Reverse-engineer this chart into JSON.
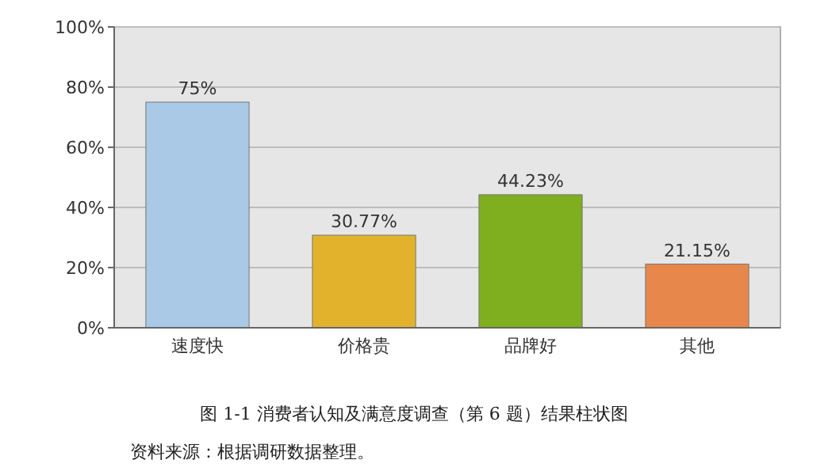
{
  "chart_data": {
    "type": "bar",
    "title": "图 1-1  消费者认知及满意度调查（第 6 题）结果柱状图",
    "categories": [
      "速度快",
      "价格贵",
      "品牌好",
      "其他"
    ],
    "values": [
      75,
      30.77,
      44.23,
      21.15
    ],
    "colors": [
      "#a9c9e6",
      "#e2b22c",
      "#7fae1e",
      "#e8874c"
    ],
    "value_labels": [
      "75%",
      "30.77%",
      "44.23%",
      "21.15%"
    ],
    "ylim": [
      0,
      100
    ],
    "yticks": [
      {
        "value": 0,
        "label": "0%"
      },
      {
        "value": 20,
        "label": "20%"
      },
      {
        "value": 40,
        "label": "40%"
      },
      {
        "value": 60,
        "label": "60%"
      },
      {
        "value": 80,
        "label": "80%"
      },
      {
        "value": 100,
        "label": "100%"
      }
    ],
    "grid": "y",
    "annotations": [
      "资料来源：根据调研数据整理。"
    ]
  }
}
